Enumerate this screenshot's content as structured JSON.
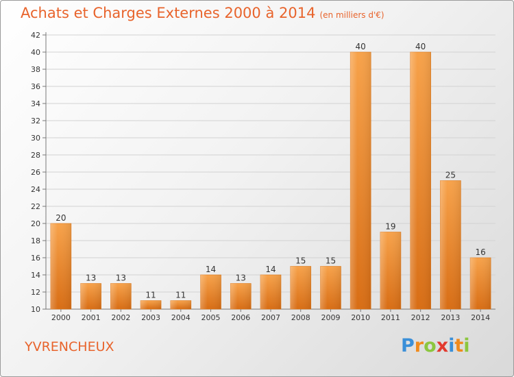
{
  "header": {
    "title": "Achats et Charges Externes 2000 à 2014",
    "unit": "(en milliers d'€)"
  },
  "footer": {
    "commune": "YVRENCHEUX",
    "logo": [
      "P",
      "r",
      "o",
      "x",
      "i",
      "t",
      "i"
    ],
    "logo_colors": [
      "#3a8fd8",
      "#f08a1c",
      "#8cc63f",
      "#e23a2e",
      "#3a8fd8",
      "#f08a1c",
      "#8cc63f"
    ]
  },
  "chart_data": {
    "type": "bar",
    "categories": [
      "2000",
      "2001",
      "2002",
      "2003",
      "2004",
      "2005",
      "2006",
      "2007",
      "2008",
      "2009",
      "2010",
      "2011",
      "2012",
      "2013",
      "2014"
    ],
    "values": [
      20,
      13,
      13,
      11,
      11,
      14,
      13,
      14,
      15,
      15,
      40,
      19,
      40,
      25,
      16
    ],
    "ylim": [
      10,
      42
    ],
    "yticks": [
      10,
      12,
      14,
      16,
      18,
      20,
      22,
      24,
      26,
      28,
      30,
      32,
      34,
      36,
      38,
      40,
      42
    ],
    "grid": true,
    "bar_color": "#f28c28",
    "title_color": "#e8632b"
  }
}
